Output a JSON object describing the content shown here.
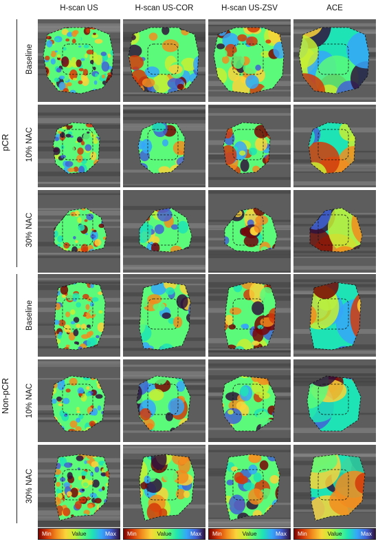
{
  "columns": [
    "H-scan US",
    "H-scan US-COR",
    "H-scan US-ZSV",
    "ACE"
  ],
  "groups": [
    {
      "label": "pCR",
      "rows": [
        "Baseline",
        "10% NAC",
        "30% NAC"
      ]
    },
    {
      "label": "Non-pCR",
      "rows": [
        "Baseline",
        "10% NAC",
        "30% NAC"
      ]
    }
  ],
  "colorbar": {
    "min_label": "Min",
    "value_label": "Value",
    "max_label": "Max"
  },
  "colormap": [
    "#7a0403",
    "#d43a09",
    "#f28c1e",
    "#fbd33a",
    "#c8ef34",
    "#5bfa7a",
    "#1ee3b5",
    "#36a6f9",
    "#4162d6",
    "#30123b"
  ]
}
